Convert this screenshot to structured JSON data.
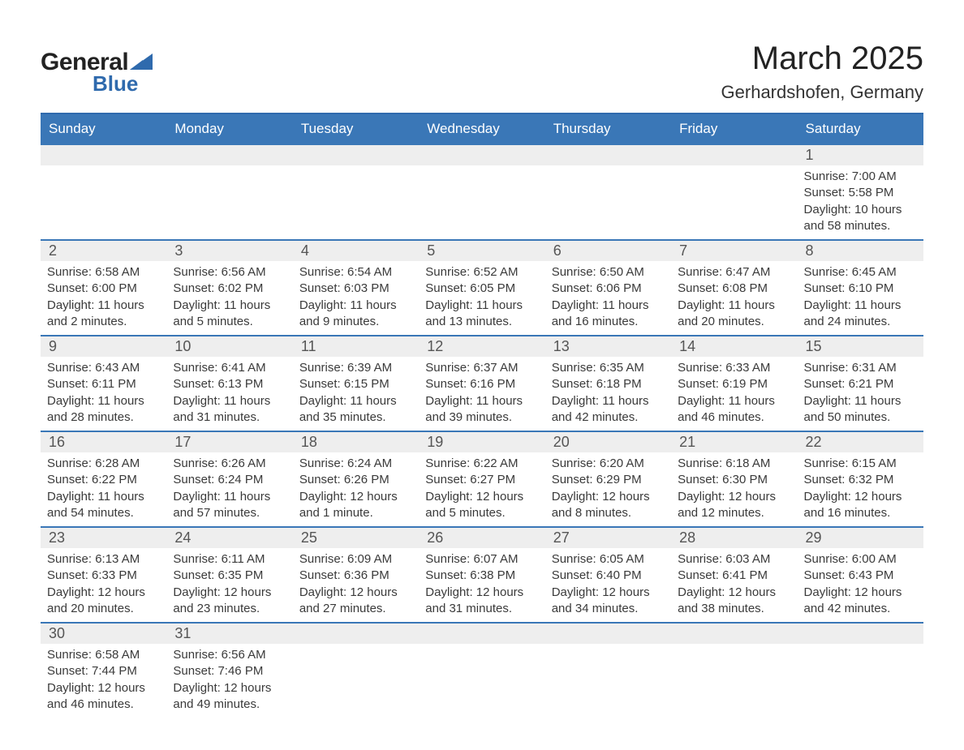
{
  "logo": {
    "general": "General",
    "blue": "Blue"
  },
  "title": "March 2025",
  "location": "Gerhardshofen, Germany",
  "colors": {
    "header_bg": "#3a77b7",
    "header_border": "#2f6aad",
    "daynum_bg": "#eeeeee",
    "text": "#3a3a3a",
    "logo_blue": "#2f6aad"
  },
  "typography": {
    "title_fontsize": 40,
    "location_fontsize": 22,
    "header_fontsize": 17,
    "daynum_fontsize": 18,
    "body_fontsize": 15
  },
  "layout": {
    "columns": 7,
    "weeks": 6
  },
  "day_headers": [
    "Sunday",
    "Monday",
    "Tuesday",
    "Wednesday",
    "Thursday",
    "Friday",
    "Saturday"
  ],
  "weeks": [
    [
      null,
      null,
      null,
      null,
      null,
      null,
      {
        "day": "1",
        "sunrise": "Sunrise: 7:00 AM",
        "sunset": "Sunset: 5:58 PM",
        "dl1": "Daylight: 10 hours",
        "dl2": "and 58 minutes."
      }
    ],
    [
      {
        "day": "2",
        "sunrise": "Sunrise: 6:58 AM",
        "sunset": "Sunset: 6:00 PM",
        "dl1": "Daylight: 11 hours",
        "dl2": "and 2 minutes."
      },
      {
        "day": "3",
        "sunrise": "Sunrise: 6:56 AM",
        "sunset": "Sunset: 6:02 PM",
        "dl1": "Daylight: 11 hours",
        "dl2": "and 5 minutes."
      },
      {
        "day": "4",
        "sunrise": "Sunrise: 6:54 AM",
        "sunset": "Sunset: 6:03 PM",
        "dl1": "Daylight: 11 hours",
        "dl2": "and 9 minutes."
      },
      {
        "day": "5",
        "sunrise": "Sunrise: 6:52 AM",
        "sunset": "Sunset: 6:05 PM",
        "dl1": "Daylight: 11 hours",
        "dl2": "and 13 minutes."
      },
      {
        "day": "6",
        "sunrise": "Sunrise: 6:50 AM",
        "sunset": "Sunset: 6:06 PM",
        "dl1": "Daylight: 11 hours",
        "dl2": "and 16 minutes."
      },
      {
        "day": "7",
        "sunrise": "Sunrise: 6:47 AM",
        "sunset": "Sunset: 6:08 PM",
        "dl1": "Daylight: 11 hours",
        "dl2": "and 20 minutes."
      },
      {
        "day": "8",
        "sunrise": "Sunrise: 6:45 AM",
        "sunset": "Sunset: 6:10 PM",
        "dl1": "Daylight: 11 hours",
        "dl2": "and 24 minutes."
      }
    ],
    [
      {
        "day": "9",
        "sunrise": "Sunrise: 6:43 AM",
        "sunset": "Sunset: 6:11 PM",
        "dl1": "Daylight: 11 hours",
        "dl2": "and 28 minutes."
      },
      {
        "day": "10",
        "sunrise": "Sunrise: 6:41 AM",
        "sunset": "Sunset: 6:13 PM",
        "dl1": "Daylight: 11 hours",
        "dl2": "and 31 minutes."
      },
      {
        "day": "11",
        "sunrise": "Sunrise: 6:39 AM",
        "sunset": "Sunset: 6:15 PM",
        "dl1": "Daylight: 11 hours",
        "dl2": "and 35 minutes."
      },
      {
        "day": "12",
        "sunrise": "Sunrise: 6:37 AM",
        "sunset": "Sunset: 6:16 PM",
        "dl1": "Daylight: 11 hours",
        "dl2": "and 39 minutes."
      },
      {
        "day": "13",
        "sunrise": "Sunrise: 6:35 AM",
        "sunset": "Sunset: 6:18 PM",
        "dl1": "Daylight: 11 hours",
        "dl2": "and 42 minutes."
      },
      {
        "day": "14",
        "sunrise": "Sunrise: 6:33 AM",
        "sunset": "Sunset: 6:19 PM",
        "dl1": "Daylight: 11 hours",
        "dl2": "and 46 minutes."
      },
      {
        "day": "15",
        "sunrise": "Sunrise: 6:31 AM",
        "sunset": "Sunset: 6:21 PM",
        "dl1": "Daylight: 11 hours",
        "dl2": "and 50 minutes."
      }
    ],
    [
      {
        "day": "16",
        "sunrise": "Sunrise: 6:28 AM",
        "sunset": "Sunset: 6:22 PM",
        "dl1": "Daylight: 11 hours",
        "dl2": "and 54 minutes."
      },
      {
        "day": "17",
        "sunrise": "Sunrise: 6:26 AM",
        "sunset": "Sunset: 6:24 PM",
        "dl1": "Daylight: 11 hours",
        "dl2": "and 57 minutes."
      },
      {
        "day": "18",
        "sunrise": "Sunrise: 6:24 AM",
        "sunset": "Sunset: 6:26 PM",
        "dl1": "Daylight: 12 hours",
        "dl2": "and 1 minute."
      },
      {
        "day": "19",
        "sunrise": "Sunrise: 6:22 AM",
        "sunset": "Sunset: 6:27 PM",
        "dl1": "Daylight: 12 hours",
        "dl2": "and 5 minutes."
      },
      {
        "day": "20",
        "sunrise": "Sunrise: 6:20 AM",
        "sunset": "Sunset: 6:29 PM",
        "dl1": "Daylight: 12 hours",
        "dl2": "and 8 minutes."
      },
      {
        "day": "21",
        "sunrise": "Sunrise: 6:18 AM",
        "sunset": "Sunset: 6:30 PM",
        "dl1": "Daylight: 12 hours",
        "dl2": "and 12 minutes."
      },
      {
        "day": "22",
        "sunrise": "Sunrise: 6:15 AM",
        "sunset": "Sunset: 6:32 PM",
        "dl1": "Daylight: 12 hours",
        "dl2": "and 16 minutes."
      }
    ],
    [
      {
        "day": "23",
        "sunrise": "Sunrise: 6:13 AM",
        "sunset": "Sunset: 6:33 PM",
        "dl1": "Daylight: 12 hours",
        "dl2": "and 20 minutes."
      },
      {
        "day": "24",
        "sunrise": "Sunrise: 6:11 AM",
        "sunset": "Sunset: 6:35 PM",
        "dl1": "Daylight: 12 hours",
        "dl2": "and 23 minutes."
      },
      {
        "day": "25",
        "sunrise": "Sunrise: 6:09 AM",
        "sunset": "Sunset: 6:36 PM",
        "dl1": "Daylight: 12 hours",
        "dl2": "and 27 minutes."
      },
      {
        "day": "26",
        "sunrise": "Sunrise: 6:07 AM",
        "sunset": "Sunset: 6:38 PM",
        "dl1": "Daylight: 12 hours",
        "dl2": "and 31 minutes."
      },
      {
        "day": "27",
        "sunrise": "Sunrise: 6:05 AM",
        "sunset": "Sunset: 6:40 PM",
        "dl1": "Daylight: 12 hours",
        "dl2": "and 34 minutes."
      },
      {
        "day": "28",
        "sunrise": "Sunrise: 6:03 AM",
        "sunset": "Sunset: 6:41 PM",
        "dl1": "Daylight: 12 hours",
        "dl2": "and 38 minutes."
      },
      {
        "day": "29",
        "sunrise": "Sunrise: 6:00 AM",
        "sunset": "Sunset: 6:43 PM",
        "dl1": "Daylight: 12 hours",
        "dl2": "and 42 minutes."
      }
    ],
    [
      {
        "day": "30",
        "sunrise": "Sunrise: 6:58 AM",
        "sunset": "Sunset: 7:44 PM",
        "dl1": "Daylight: 12 hours",
        "dl2": "and 46 minutes."
      },
      {
        "day": "31",
        "sunrise": "Sunrise: 6:56 AM",
        "sunset": "Sunset: 7:46 PM",
        "dl1": "Daylight: 12 hours",
        "dl2": "and 49 minutes."
      },
      null,
      null,
      null,
      null,
      null
    ]
  ]
}
